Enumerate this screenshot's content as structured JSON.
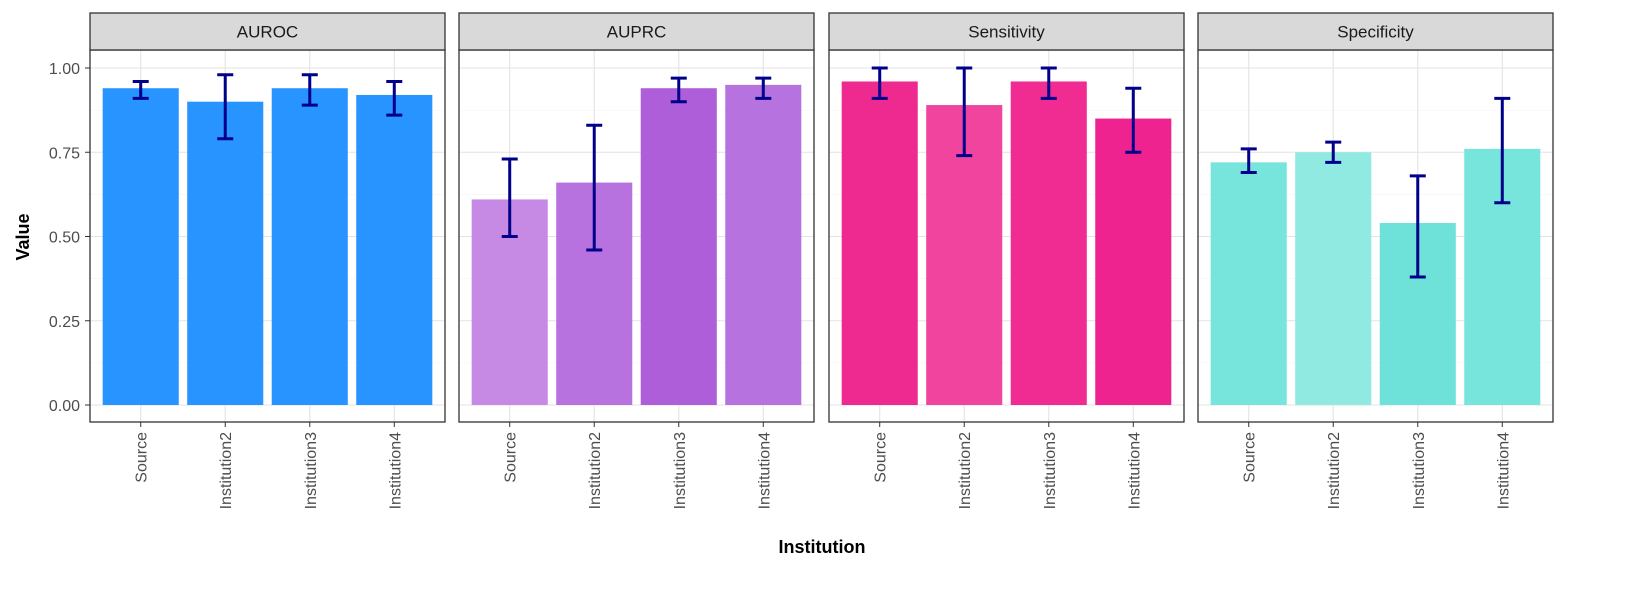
{
  "chart_data": {
    "type": "bar",
    "xlabel": "Institution",
    "ylabel": "Value",
    "ylim": [
      0,
      1.1
    ],
    "yticks": [
      0,
      0.25,
      0.5,
      0.75,
      1.0
    ],
    "ytick_labels": [
      "0.00",
      "0.25",
      "0.50",
      "0.75",
      "1.00"
    ],
    "categories": [
      "Source",
      "Institution2",
      "Institution3",
      "Institution4"
    ],
    "grid": true,
    "errorbar_color": "#00008B",
    "panels": [
      {
        "title": "AUROC",
        "values": [
          0.94,
          0.9,
          0.94,
          0.92
        ],
        "lower": [
          0.91,
          0.79,
          0.89,
          0.86
        ],
        "upper": [
          0.96,
          0.98,
          0.98,
          0.96
        ],
        "colors": [
          "#2894FF",
          "#2894FF",
          "#2894FF",
          "#2894FF"
        ]
      },
      {
        "title": "AUPRC",
        "values": [
          0.61,
          0.66,
          0.94,
          0.95
        ],
        "lower": [
          0.5,
          0.46,
          0.9,
          0.91
        ],
        "upper": [
          0.73,
          0.83,
          0.97,
          0.97
        ],
        "colors": [
          "#C68AE5",
          "#B872E0",
          "#AD5ED8",
          "#B672DE"
        ]
      },
      {
        "title": "Sensitivity",
        "values": [
          0.96,
          0.89,
          0.96,
          0.85
        ],
        "lower": [
          0.91,
          0.74,
          0.91,
          0.75
        ],
        "upper": [
          1.0,
          1.0,
          1.0,
          0.94
        ],
        "colors": [
          "#EE2A90",
          "#F0449E",
          "#F02B92",
          "#EE2390"
        ]
      },
      {
        "title": "Specificity",
        "values": [
          0.72,
          0.75,
          0.54,
          0.76
        ],
        "lower": [
          0.69,
          0.72,
          0.38,
          0.6
        ],
        "upper": [
          0.76,
          0.78,
          0.68,
          0.91
        ],
        "colors": [
          "#77E5DC",
          "#90EAE2",
          "#6EE2D9",
          "#77E5DC"
        ]
      }
    ]
  }
}
